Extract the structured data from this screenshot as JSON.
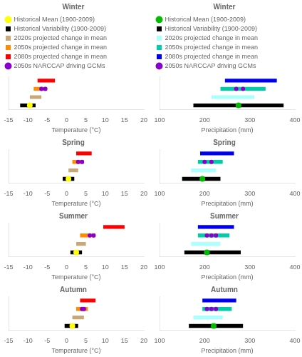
{
  "chart_data": [
    {
      "type": "bar",
      "orientation": "horizontal",
      "title": "Winter",
      "xlabel": "Temperature (°C)",
      "categories": [
        null,
        null,
        null,
        null
      ],
      "xlim": [
        -15,
        20
      ],
      "xticks": [
        -15,
        -10,
        -5,
        0,
        5,
        10,
        15,
        20
      ],
      "tick_labels": "x",
      "grid": false,
      "legend": "upper left",
      "series": [
        {
          "name": "Historical Mean (1900-2009)",
          "type": "scatter",
          "marker": "circle",
          "color": "#FFFF00",
          "values": [
            null,
            null,
            null,
            -9.5
          ]
        },
        {
          "name": "Historical Variability (1900-2009)",
          "color": "#000000",
          "values": [
            null,
            null,
            null,
            [
              -12.0,
              -8.0
            ]
          ]
        },
        {
          "name": "2020s projected change in mean",
          "color": "#C8A878",
          "values": [
            null,
            null,
            [
              -9.5,
              -6.5
            ],
            null
          ]
        },
        {
          "name": "2050s projected change in mean",
          "color": "#FF8C00",
          "values": [
            null,
            [
              -8.5,
              -5.0
            ],
            null,
            null
          ]
        },
        {
          "name": "2080s projected change in mean",
          "color": "#FF0000",
          "values": [
            [
              -7.5,
              -3.0
            ],
            null,
            null,
            null
          ]
        },
        {
          "name": "2050s NARCCAP driving GCMs",
          "type": "scatter",
          "marker": "circle",
          "color": "#8800CC",
          "values": [
            null,
            [
              -6.5,
              -5.5
            ],
            null,
            null
          ]
        }
      ]
    },
    {
      "type": "bar",
      "orientation": "horizontal",
      "title": "Winter",
      "xlabel": "Precipitation (mm)",
      "categories": [
        null,
        null,
        null,
        null
      ],
      "xlim": [
        100,
        400
      ],
      "xticks": [
        100,
        200,
        300,
        400
      ],
      "tick_labels": "x",
      "grid": false,
      "legend": "upper left",
      "series": [
        {
          "name": "Historical Mean (1900-2009)",
          "type": "scatter",
          "marker": "circle",
          "color": "#00BB00",
          "values": [
            null,
            null,
            null,
            275
          ]
        },
        {
          "name": "Historical Variability (1900-2009)",
          "color": "#000000",
          "values": [
            null,
            null,
            null,
            [
              175,
              375
            ]
          ]
        },
        {
          "name": "2020s projected change in mean",
          "color": "#AAFFFF",
          "values": [
            null,
            null,
            [
              215,
              310
            ],
            null
          ]
        },
        {
          "name": "2050s projected change in mean",
          "color": "#00CCAA",
          "values": [
            null,
            [
              235,
              335
            ],
            null,
            null
          ]
        },
        {
          "name": "2080s projected change in mean",
          "color": "#0000EE",
          "values": [
            [
              245,
              360
            ],
            null,
            null,
            null
          ]
        },
        {
          "name": "2050s NARCCAP driving GCMs",
          "type": "scatter",
          "marker": "circle",
          "color": "#8800CC",
          "values": [
            null,
            [
              270,
              285
            ],
            null,
            null
          ]
        }
      ]
    },
    {
      "type": "bar",
      "orientation": "horizontal",
      "title": "Spring",
      "xlabel": "Temperature (°C)",
      "categories": [
        null,
        null,
        null,
        null
      ],
      "xlim": [
        -15,
        20
      ],
      "xticks": [
        -15,
        -10,
        -5,
        0,
        5,
        10,
        15,
        20
      ],
      "tick_labels": "x",
      "grid": false,
      "series": [
        {
          "name": "Historical Mean (1900-2009)",
          "type": "scatter",
          "marker": "circle",
          "color": "#FFFF00",
          "values": [
            null,
            null,
            null,
            0.5
          ]
        },
        {
          "name": "Historical Variability (1900-2009)",
          "color": "#000000",
          "values": [
            null,
            null,
            null,
            [
              -1.0,
              2.0
            ]
          ]
        },
        {
          "name": "2020s projected change in mean",
          "color": "#C8A878",
          "values": [
            null,
            null,
            [
              0.5,
              3.0
            ],
            null
          ]
        },
        {
          "name": "2050s projected change in mean",
          "color": "#FF8C00",
          "values": [
            null,
            [
              1.5,
              4.5
            ],
            null,
            null
          ]
        },
        {
          "name": "2080s projected change in mean",
          "color": "#FF0000",
          "values": [
            [
              2.5,
              6.5
            ],
            null,
            null,
            null
          ]
        },
        {
          "name": "2050s NARCCAP driving GCMs",
          "type": "scatter",
          "marker": "circle",
          "color": "#8800CC",
          "values": [
            null,
            [
              3.0,
              4.0
            ],
            null,
            null
          ]
        }
      ]
    },
    {
      "type": "bar",
      "orientation": "horizontal",
      "title": "Spring",
      "xlabel": "Precipitation (mm)",
      "categories": [
        null,
        null,
        null,
        null
      ],
      "xlim": [
        100,
        400
      ],
      "xticks": [
        100,
        200,
        300,
        400
      ],
      "tick_labels": "x",
      "grid": false,
      "series": [
        {
          "name": "Historical Mean (1900-2009)",
          "type": "scatter",
          "marker": "circle",
          "color": "#00BB00",
          "values": [
            null,
            null,
            null,
            195
          ]
        },
        {
          "name": "Historical Variability (1900-2009)",
          "color": "#000000",
          "values": [
            null,
            null,
            null,
            [
              150,
              235
            ]
          ]
        },
        {
          "name": "2020s projected change in mean",
          "color": "#AAFFFF",
          "values": [
            null,
            null,
            [
              170,
              225
            ],
            null
          ]
        },
        {
          "name": "2050s projected change in mean",
          "color": "#00CCAA",
          "values": [
            null,
            [
              185,
              240
            ],
            null,
            null
          ]
        },
        {
          "name": "2080s projected change in mean",
          "color": "#0000EE",
          "values": [
            [
              190,
              265
            ],
            null,
            null,
            null
          ]
        },
        {
          "name": "2050s NARCCAP driving GCMs",
          "type": "scatter",
          "marker": "circle",
          "color": "#8800CC",
          "values": [
            null,
            [
              200,
              215
            ],
            null,
            null
          ]
        }
      ]
    },
    {
      "type": "bar",
      "orientation": "horizontal",
      "title": "Summer",
      "xlabel": "Temperature (°C)",
      "categories": [
        null,
        null,
        null,
        null
      ],
      "xlim": [
        -15,
        20
      ],
      "xticks": [
        -15,
        -10,
        -5,
        0,
        5,
        10,
        15,
        20
      ],
      "tick_labels": "x",
      "grid": false,
      "series": [
        {
          "name": "Historical Mean (1900-2009)",
          "type": "scatter",
          "marker": "circle",
          "color": "#FFFF00",
          "values": [
            null,
            null,
            null,
            2.5
          ]
        },
        {
          "name": "Historical Variability (1900-2009)",
          "color": "#000000",
          "values": [
            null,
            null,
            null,
            [
              1.0,
              4.0
            ]
          ]
        },
        {
          "name": "2020s projected change in mean",
          "color": "#C8A878",
          "values": [
            null,
            null,
            [
              2.5,
              5.0
            ],
            null
          ]
        },
        {
          "name": "2050s projected change in mean",
          "color": "#FF8C00",
          "values": [
            null,
            [
              3.5,
              7.5
            ],
            null,
            null
          ]
        },
        {
          "name": "2080s projected change in mean",
          "color": "#FF0000",
          "values": [
            [
              9.5,
              15.0
            ],
            null,
            null,
            null
          ]
        },
        {
          "name": "2050s NARCCAP driving GCMs",
          "type": "scatter",
          "marker": "circle",
          "color": "#8800CC",
          "values": [
            null,
            [
              6.0,
              7.0
            ],
            null,
            null
          ]
        }
      ]
    },
    {
      "type": "bar",
      "orientation": "horizontal",
      "title": "Summer",
      "xlabel": "Precipitation (mm)",
      "categories": [
        null,
        null,
        null,
        null
      ],
      "xlim": [
        100,
        400
      ],
      "xticks": [
        100,
        200,
        300,
        400
      ],
      "tick_labels": "x",
      "grid": false,
      "series": [
        {
          "name": "Historical Mean (1900-2009)",
          "type": "scatter",
          "marker": "circle",
          "color": "#00BB00",
          "values": [
            null,
            null,
            null,
            205
          ]
        },
        {
          "name": "Historical Variability (1900-2009)",
          "color": "#000000",
          "values": [
            null,
            null,
            null,
            [
              155,
              280
            ]
          ]
        },
        {
          "name": "2020s projected change in mean",
          "color": "#AAFFFF",
          "values": [
            null,
            null,
            [
              170,
              235
            ],
            null
          ]
        },
        {
          "name": "2050s projected change in mean",
          "color": "#00CCAA",
          "values": [
            null,
            [
              185,
              255
            ],
            null,
            null
          ]
        },
        {
          "name": "2080s projected change in mean",
          "color": "#0000EE",
          "values": [
            [
              185,
              265
            ],
            null,
            null,
            null
          ]
        },
        {
          "name": "2050s NARCCAP driving GCMs",
          "type": "scatter",
          "marker": "circle",
          "color": "#8800CC",
          "values": [
            null,
            [
              205,
              215,
              225
            ],
            null,
            null
          ]
        }
      ]
    },
    {
      "type": "bar",
      "orientation": "horizontal",
      "title": "Autumn",
      "xlabel": "Temperature (°C)",
      "categories": [
        null,
        null,
        null,
        null
      ],
      "xlim": [
        -15,
        20
      ],
      "xticks": [
        -15,
        -10,
        -5,
        0,
        5,
        10,
        15,
        20
      ],
      "tick_labels": "x",
      "grid": false,
      "series": [
        {
          "name": "Historical Mean (1900-2009)",
          "type": "scatter",
          "marker": "circle",
          "color": "#FFFF00",
          "values": [
            null,
            null,
            null,
            1.5
          ]
        },
        {
          "name": "Historical Variability (1900-2009)",
          "color": "#000000",
          "values": [
            null,
            null,
            null,
            [
              -0.5,
              3.0
            ]
          ]
        },
        {
          "name": "2020s projected change in mean",
          "color": "#C8A878",
          "values": [
            null,
            null,
            [
              1.5,
              4.5
            ],
            null
          ]
        },
        {
          "name": "2050s projected change in mean",
          "color": "#FF8C00",
          "values": [
            null,
            [
              2.5,
              5.5
            ],
            null,
            null
          ]
        },
        {
          "name": "2080s projected change in mean",
          "color": "#FF0000",
          "values": [
            [
              3.5,
              7.5
            ],
            null,
            null,
            null
          ]
        },
        {
          "name": "2050s NARCCAP driving GCMs",
          "type": "scatter",
          "marker": "circle",
          "color": "#8800CC",
          "values": [
            null,
            [
              4.0,
              4.5
            ],
            null,
            null
          ]
        }
      ]
    },
    {
      "type": "bar",
      "orientation": "horizontal",
      "title": "Autumn",
      "xlabel": "Precipitation (mm)",
      "categories": [
        null,
        null,
        null,
        null
      ],
      "xlim": [
        100,
        400
      ],
      "xticks": [
        100,
        200,
        300,
        400
      ],
      "tick_labels": "x",
      "grid": false,
      "series": [
        {
          "name": "Historical Mean (1900-2009)",
          "type": "scatter",
          "marker": "circle",
          "color": "#00BB00",
          "values": [
            null,
            null,
            null,
            220
          ]
        },
        {
          "name": "Historical Variability (1900-2009)",
          "color": "#000000",
          "values": [
            null,
            null,
            null,
            [
              165,
              285
            ]
          ]
        },
        {
          "name": "2020s projected change in mean",
          "color": "#AAFFFF",
          "values": [
            null,
            null,
            [
              175,
              240
            ],
            null
          ]
        },
        {
          "name": "2050s projected change in mean",
          "color": "#00CCAA",
          "values": [
            null,
            [
              195,
              260
            ],
            null,
            null
          ]
        },
        {
          "name": "2080s projected change in mean",
          "color": "#0000EE",
          "values": [
            [
              195,
              270
            ],
            null,
            null,
            null
          ]
        },
        {
          "name": "2050s NARCCAP driving GCMs",
          "type": "scatter",
          "marker": "circle",
          "color": "#8800CC",
          "values": [
            null,
            [
              205,
              215,
              225
            ],
            null,
            null
          ]
        }
      ]
    }
  ]
}
